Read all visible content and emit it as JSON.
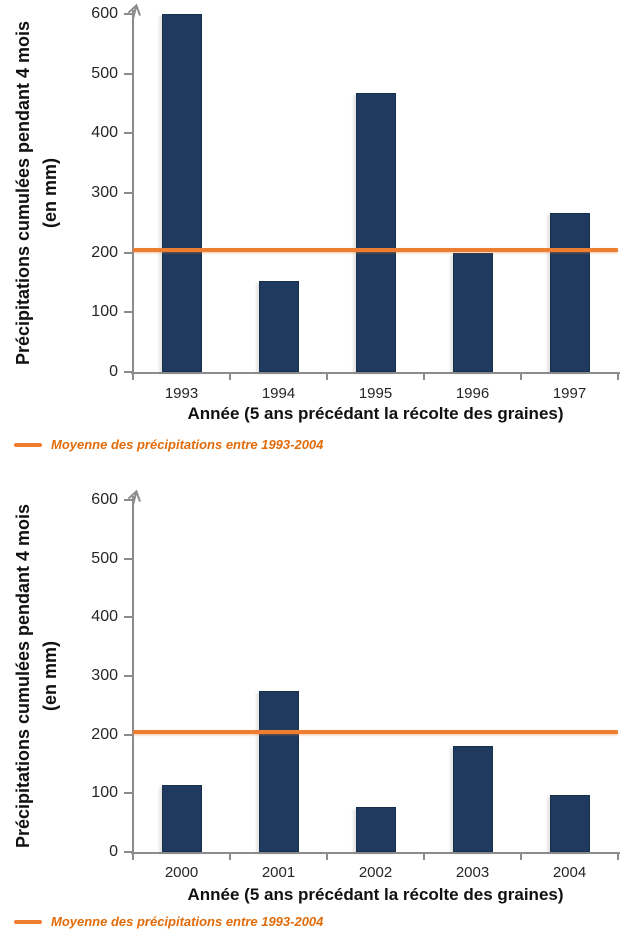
{
  "colors": {
    "bar_fill": "#1f3a5e",
    "bar_border": "#17304c",
    "mean_line": "#ed7d31",
    "axis": "#8c8c8c",
    "tick_text": "#262626",
    "legend_text": "#e26b0a"
  },
  "chart_data": [
    {
      "type": "bar",
      "ylabel": "Précipitations cumulées pendant 4 mois",
      "ylabel_unit": "(en mm)",
      "xlabel": "Année (5 ans précédant la récolte des graines)",
      "categories": [
        "1993",
        "1994",
        "1995",
        "1996",
        "1997"
      ],
      "values": [
        600,
        153,
        467,
        200,
        267
      ],
      "ylim": [
        0,
        600
      ],
      "yticks": [
        0,
        100,
        200,
        300,
        400,
        500,
        600
      ],
      "grid": false,
      "mean_line_value": 204,
      "legend": {
        "position": "bottom-left",
        "label": "Moyenne des précipitations entre 1993-2004"
      }
    },
    {
      "type": "bar",
      "ylabel": "Précipitations cumulées pendant 4 mois",
      "ylabel_unit": "(en mm)",
      "xlabel": "Année (5 ans précédant la récolte des graines)",
      "categories": [
        "2000",
        "2001",
        "2002",
        "2003",
        "2004"
      ],
      "values": [
        115,
        275,
        77,
        180,
        98
      ],
      "ylim": [
        0,
        600
      ],
      "yticks": [
        0,
        100,
        200,
        300,
        400,
        500,
        600
      ],
      "grid": false,
      "mean_line_value": 204,
      "legend": {
        "position": "bottom-left",
        "label": "Moyenne des précipitations entre 1993-2004"
      }
    }
  ]
}
